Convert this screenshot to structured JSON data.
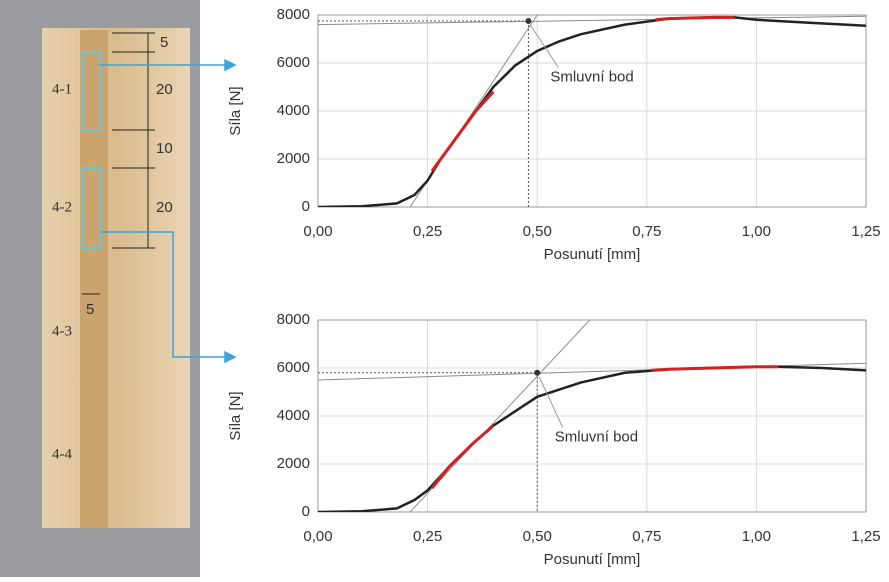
{
  "photo": {
    "specimen_labels": [
      "4-1",
      "4-2",
      "4-3",
      "4-4"
    ],
    "dimension_labels": [
      5,
      20,
      10,
      20,
      5
    ]
  },
  "chart_data": [
    {
      "type": "line",
      "xlabel": "Posunutí [mm]",
      "ylabel": "Síla [N]",
      "annotation": "Smluvní bod",
      "grid": true,
      "xlim": [
        0,
        1.25
      ],
      "ylim": [
        0,
        8000
      ],
      "xticks": [
        {
          "value": 0,
          "label": "0,00"
        },
        {
          "value": 0.25,
          "label": "0,25"
        },
        {
          "value": 0.5,
          "label": "0,50"
        },
        {
          "value": 0.75,
          "label": "0,75"
        },
        {
          "value": 1,
          "label": "1,00"
        },
        {
          "value": 1.25,
          "label": "1,25"
        }
      ],
      "yticks": [
        0,
        2000,
        4000,
        6000,
        8000
      ],
      "series": [
        {
          "color": "#8c8c8c",
          "width": 1,
          "x": [
            0.21,
            0.5
          ],
          "values": [
            0,
            8000
          ]
        },
        {
          "color": "#8c8c8c",
          "width": 1,
          "x": [
            0,
            1.25
          ],
          "values": [
            7600,
            7950
          ]
        },
        {
          "color": "#222222",
          "width": 2.5,
          "x": [
            0,
            0.1,
            0.18,
            0.22,
            0.25,
            0.28,
            0.32,
            0.36,
            0.4,
            0.45,
            0.5,
            0.55,
            0.6,
            0.7,
            0.8,
            0.9,
            0.95,
            1.0,
            1.1,
            1.25
          ],
          "values": [
            0,
            30,
            150,
            500,
            1100,
            2000,
            3000,
            4000,
            5000,
            5900,
            6500,
            6900,
            7200,
            7600,
            7850,
            7900,
            7900,
            7800,
            7700,
            7550
          ]
        },
        {
          "color": "#d42020",
          "width": 3,
          "x": [
            0.26,
            0.28,
            0.32,
            0.36,
            0.4
          ],
          "values": [
            1500,
            2000,
            3000,
            4000,
            4800
          ]
        },
        {
          "color": "#d42020",
          "width": 3,
          "x": [
            0.77,
            0.8,
            0.9,
            0.95
          ],
          "values": [
            7800,
            7850,
            7900,
            7900
          ]
        }
      ],
      "point": {
        "x": 0.48,
        "y": 7750
      },
      "annotation_position": {
        "x": 0.53,
        "y": 5400
      }
    },
    {
      "type": "line",
      "xlabel": "Posunutí [mm]",
      "ylabel": "Síla [N]",
      "annotation": "Smluvní bod",
      "grid": true,
      "xlim": [
        0,
        1.25
      ],
      "ylim": [
        0,
        8000
      ],
      "xticks": [
        {
          "value": 0,
          "label": "0,00"
        },
        {
          "value": 0.25,
          "label": "0,25"
        },
        {
          "value": 0.5,
          "label": "0,50"
        },
        {
          "value": 0.75,
          "label": "0,75"
        },
        {
          "value": 1,
          "label": "1,00"
        },
        {
          "value": 1.25,
          "label": "1,25"
        }
      ],
      "yticks": [
        0,
        2000,
        4000,
        6000,
        8000
      ],
      "series": [
        {
          "color": "#8c8c8c",
          "width": 1,
          "x": [
            0.21,
            0.62
          ],
          "values": [
            0,
            8000
          ]
        },
        {
          "color": "#8c8c8c",
          "width": 1,
          "x": [
            0,
            1.25
          ],
          "values": [
            5500,
            6200
          ]
        },
        {
          "color": "#222222",
          "width": 2.5,
          "x": [
            0,
            0.1,
            0.18,
            0.22,
            0.25,
            0.3,
            0.35,
            0.4,
            0.45,
            0.5,
            0.6,
            0.7,
            0.8,
            0.9,
            1.0,
            1.05,
            1.15,
            1.25
          ],
          "values": [
            0,
            30,
            150,
            500,
            900,
            1900,
            2800,
            3600,
            4200,
            4800,
            5400,
            5800,
            5950,
            6000,
            6050,
            6050,
            6000,
            5900
          ]
        },
        {
          "color": "#d42020",
          "width": 3,
          "x": [
            0.26,
            0.3,
            0.35,
            0.4
          ],
          "values": [
            1000,
            1900,
            2800,
            3600
          ]
        },
        {
          "color": "#d42020",
          "width": 3,
          "x": [
            0.76,
            0.8,
            0.9,
            1.0,
            1.05
          ],
          "values": [
            5900,
            5950,
            6000,
            6050,
            6050
          ]
        }
      ],
      "point": {
        "x": 0.5,
        "y": 5800
      },
      "annotation_position": {
        "x": 0.54,
        "y": 3100
      }
    }
  ]
}
